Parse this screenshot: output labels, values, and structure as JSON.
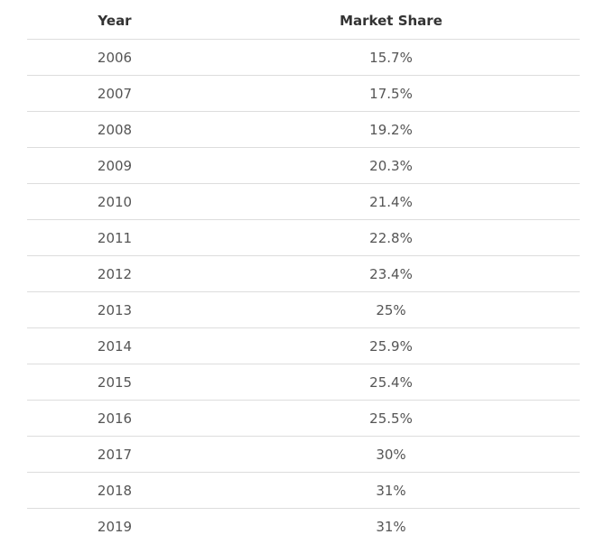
{
  "chart_data": {
    "type": "table",
    "columns": [
      "Year",
      "Market Share"
    ],
    "rows": [
      [
        "2006",
        "15.7%"
      ],
      [
        "2007",
        "17.5%"
      ],
      [
        "2008",
        "19.2%"
      ],
      [
        "2009",
        "20.3%"
      ],
      [
        "2010",
        "21.4%"
      ],
      [
        "2011",
        "22.8%"
      ],
      [
        "2012",
        "23.4%"
      ],
      [
        "2013",
        "25%"
      ],
      [
        "2014",
        "25.9%"
      ],
      [
        "2015",
        "25.4%"
      ],
      [
        "2016",
        "25.5%"
      ],
      [
        "2017",
        "30%"
      ],
      [
        "2018",
        "31%"
      ],
      [
        "2019",
        "31%"
      ]
    ],
    "x": [
      2006,
      2007,
      2008,
      2009,
      2010,
      2011,
      2012,
      2013,
      2014,
      2015,
      2016,
      2017,
      2018,
      2019
    ],
    "values": [
      15.7,
      17.5,
      19.2,
      20.3,
      21.4,
      22.8,
      23.4,
      25,
      25.9,
      25.4,
      25.5,
      30,
      31,
      31
    ]
  },
  "colors": {
    "header_text": "#333333",
    "cell_text": "#555555",
    "row_divider": "#dddddd",
    "background": "#ffffff"
  }
}
